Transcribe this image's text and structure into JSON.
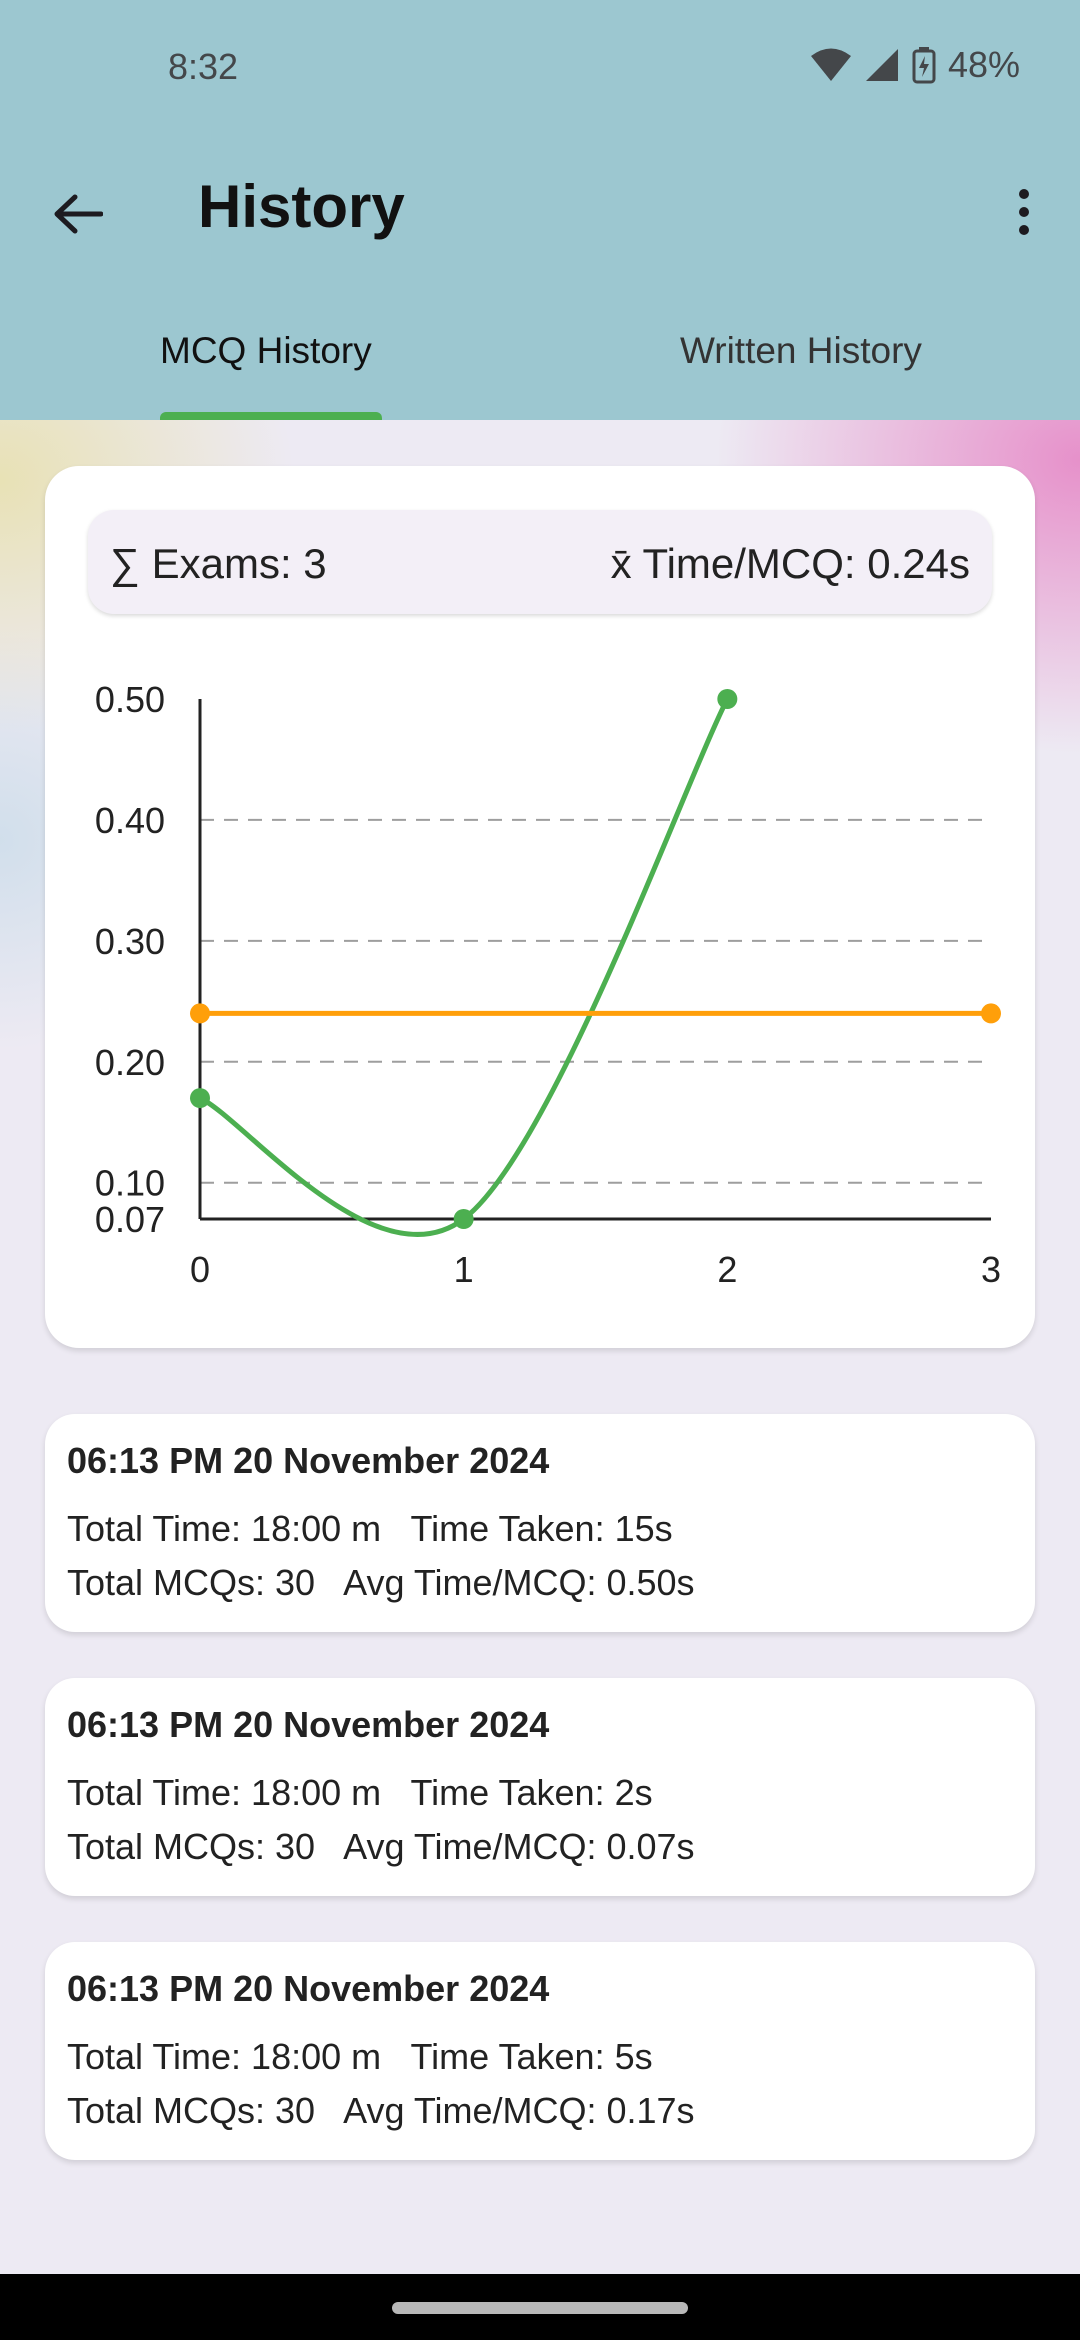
{
  "status_bar": {
    "time": "8:32",
    "battery": "48%"
  },
  "app_bar": {
    "title": "History"
  },
  "tabs": [
    {
      "label": "MCQ History",
      "selected": true
    },
    {
      "label": "Written History",
      "selected": false
    }
  ],
  "summary": {
    "exams": "∑ Exams: 3",
    "avg_time": "x̄ Time/MCQ: 0.24s"
  },
  "colors": {
    "accent": "#4caf50",
    "average_line": "#ff9f0a",
    "app_bar": "#9cc7d0"
  },
  "chart_data": {
    "type": "line",
    "series": [
      {
        "x": [
          0,
          1,
          2
        ],
        "y": [
          0.17,
          0.07,
          0.5
        ],
        "color": "#4caf50",
        "curved": true
      },
      {
        "x": [
          0,
          3
        ],
        "y": [
          0.24,
          0.24
        ],
        "color": "#ff9f0a"
      }
    ],
    "xlim": [
      0,
      3
    ],
    "ylim": [
      0.07,
      0.5
    ],
    "x_ticks": [
      "0",
      "1",
      "2",
      "3"
    ],
    "y_ticks": [
      "0.07",
      "0.10",
      "0.20",
      "0.30",
      "0.40",
      "0.50"
    ],
    "grid": "horizontal dashed",
    "title": "",
    "xlabel": "",
    "ylabel": ""
  },
  "history": [
    {
      "date": "06:13 PM 20 November 2024",
      "line1": "Total Time: 18:00 m   Time Taken: 15s",
      "line2": "Total MCQs: 30   Avg Time/MCQ: 0.50s"
    },
    {
      "date": "06:13 PM 20 November 2024",
      "line1": "Total Time: 18:00 m   Time Taken: 2s",
      "line2": "Total MCQs: 30   Avg Time/MCQ: 0.07s"
    },
    {
      "date": "06:13 PM 20 November 2024",
      "line1": "Total Time: 18:00 m   Time Taken: 5s",
      "line2": "Total MCQs: 30   Avg Time/MCQ: 0.17s"
    }
  ]
}
